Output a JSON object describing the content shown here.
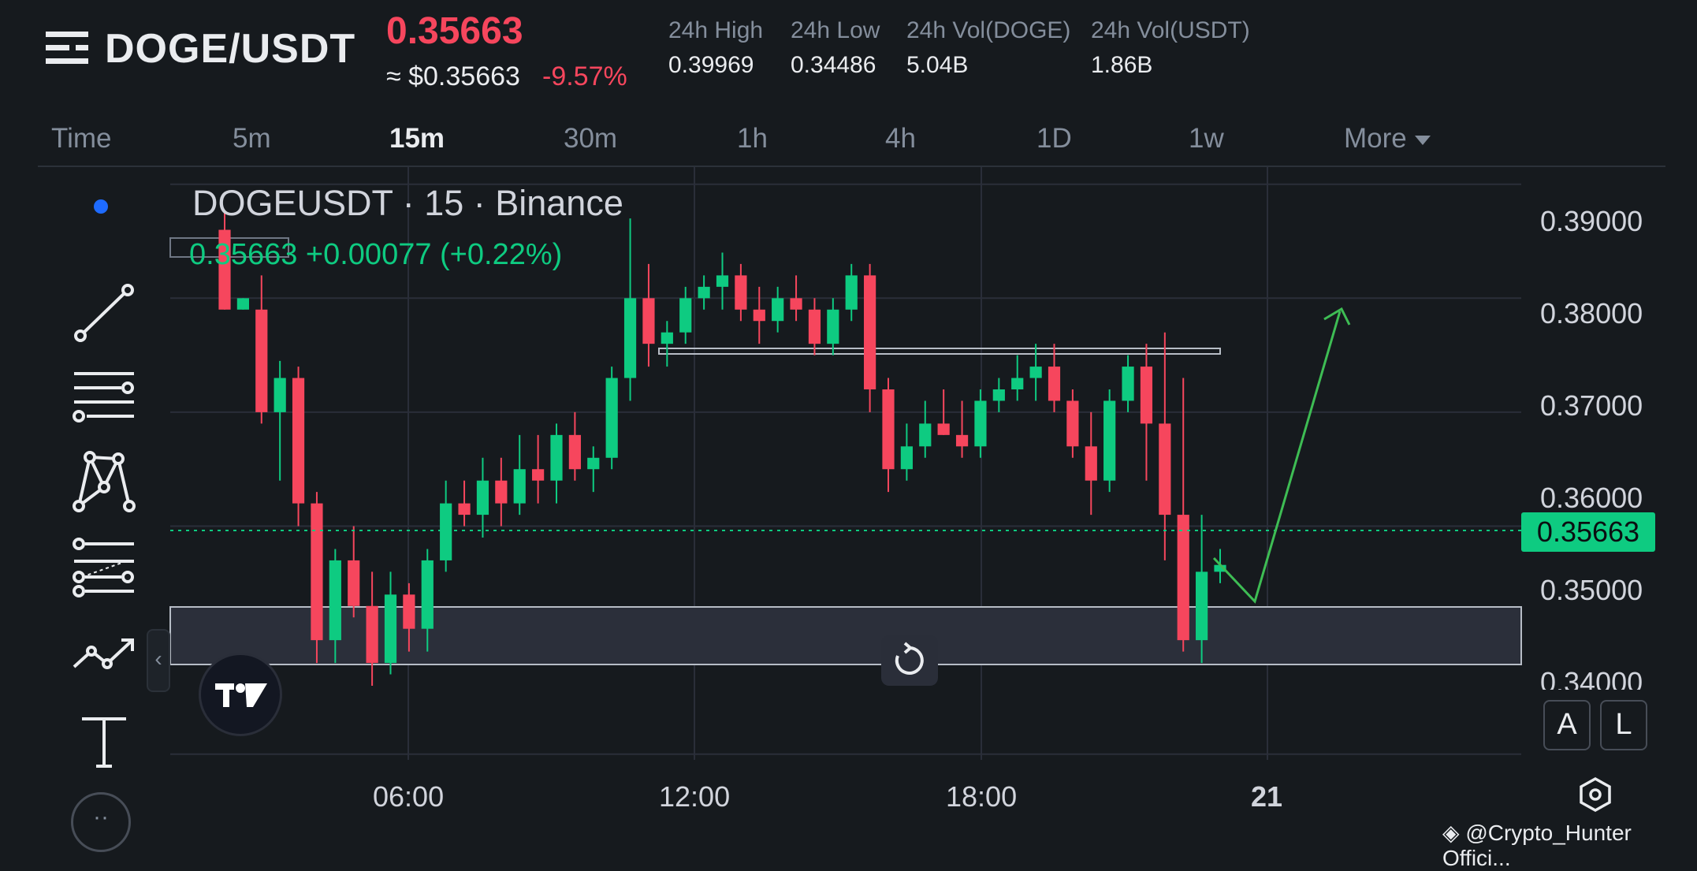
{
  "header": {
    "pair": "DOGE/USDT",
    "last_price": "0.35663",
    "approx_usd": "≈ $0.35663",
    "change_pct": "-9.57%",
    "stats": [
      {
        "label": "24h High",
        "value": "0.39969"
      },
      {
        "label": "24h Low",
        "value": "0.34486"
      },
      {
        "label": "24h Vol(DOGE)",
        "value": "5.04B"
      },
      {
        "label": "24h Vol(USDT)",
        "value": "1.86B"
      }
    ]
  },
  "timeframes": [
    "Time",
    "5m",
    "15m",
    "30m",
    "1h",
    "4h",
    "1D",
    "1w"
  ],
  "active_timeframe": "15m",
  "more_label": "More",
  "chart": {
    "symbol_line": "DOGEUSDT · 15 · Binance",
    "ohlc_line": "0.35663  +0.00077 (+0.22%)",
    "current_price_tag": "0.35663",
    "y_labels": [
      "0.39000",
      "0.38000",
      "0.37000",
      "0.36000",
      "0.35000",
      "0.34000"
    ],
    "x_labels": [
      "06:00",
      "12:00",
      "18:00",
      "21"
    ],
    "scale_buttons": [
      "A",
      "L"
    ]
  },
  "chart_data": {
    "type": "candlestick",
    "title": "DOGEUSDT · 15 · Binance",
    "ylim": [
      0.3395,
      0.3915
    ],
    "x_ticks": [
      "06:00",
      "12:00",
      "18:00",
      "21"
    ],
    "current_price": 0.35663,
    "candles": [
      {
        "o": 0.386,
        "h": 0.3875,
        "l": 0.379,
        "c": 0.379
      },
      {
        "o": 0.379,
        "h": 0.38,
        "l": 0.379,
        "c": 0.38
      },
      {
        "o": 0.379,
        "h": 0.382,
        "l": 0.369,
        "c": 0.37
      },
      {
        "o": 0.37,
        "h": 0.3745,
        "l": 0.364,
        "c": 0.373
      },
      {
        "o": 0.373,
        "h": 0.374,
        "l": 0.36,
        "c": 0.362
      },
      {
        "o": 0.362,
        "h": 0.363,
        "l": 0.348,
        "c": 0.35
      },
      {
        "o": 0.35,
        "h": 0.358,
        "l": 0.348,
        "c": 0.357
      },
      {
        "o": 0.357,
        "h": 0.36,
        "l": 0.352,
        "c": 0.353
      },
      {
        "o": 0.353,
        "h": 0.356,
        "l": 0.346,
        "c": 0.348
      },
      {
        "o": 0.348,
        "h": 0.356,
        "l": 0.347,
        "c": 0.354
      },
      {
        "o": 0.354,
        "h": 0.355,
        "l": 0.349,
        "c": 0.351
      },
      {
        "o": 0.351,
        "h": 0.358,
        "l": 0.349,
        "c": 0.357
      },
      {
        "o": 0.357,
        "h": 0.364,
        "l": 0.356,
        "c": 0.362
      },
      {
        "o": 0.362,
        "h": 0.364,
        "l": 0.36,
        "c": 0.361
      },
      {
        "o": 0.361,
        "h": 0.366,
        "l": 0.359,
        "c": 0.364
      },
      {
        "o": 0.364,
        "h": 0.366,
        "l": 0.36,
        "c": 0.362
      },
      {
        "o": 0.362,
        "h": 0.368,
        "l": 0.361,
        "c": 0.365
      },
      {
        "o": 0.365,
        "h": 0.368,
        "l": 0.362,
        "c": 0.364
      },
      {
        "o": 0.364,
        "h": 0.369,
        "l": 0.362,
        "c": 0.368
      },
      {
        "o": 0.368,
        "h": 0.37,
        "l": 0.364,
        "c": 0.365
      },
      {
        "o": 0.365,
        "h": 0.367,
        "l": 0.363,
        "c": 0.366
      },
      {
        "o": 0.366,
        "h": 0.374,
        "l": 0.365,
        "c": 0.373
      },
      {
        "o": 0.373,
        "h": 0.387,
        "l": 0.371,
        "c": 0.38
      },
      {
        "o": 0.38,
        "h": 0.383,
        "l": 0.374,
        "c": 0.376
      },
      {
        "o": 0.376,
        "h": 0.378,
        "l": 0.374,
        "c": 0.377
      },
      {
        "o": 0.377,
        "h": 0.381,
        "l": 0.376,
        "c": 0.38
      },
      {
        "o": 0.38,
        "h": 0.382,
        "l": 0.379,
        "c": 0.381
      },
      {
        "o": 0.381,
        "h": 0.384,
        "l": 0.379,
        "c": 0.382
      },
      {
        "o": 0.382,
        "h": 0.383,
        "l": 0.378,
        "c": 0.379
      },
      {
        "o": 0.379,
        "h": 0.381,
        "l": 0.376,
        "c": 0.378
      },
      {
        "o": 0.378,
        "h": 0.381,
        "l": 0.377,
        "c": 0.38
      },
      {
        "o": 0.38,
        "h": 0.382,
        "l": 0.378,
        "c": 0.379
      },
      {
        "o": 0.379,
        "h": 0.38,
        "l": 0.375,
        "c": 0.376
      },
      {
        "o": 0.376,
        "h": 0.38,
        "l": 0.375,
        "c": 0.379
      },
      {
        "o": 0.379,
        "h": 0.383,
        "l": 0.378,
        "c": 0.382
      },
      {
        "o": 0.382,
        "h": 0.383,
        "l": 0.37,
        "c": 0.372
      },
      {
        "o": 0.372,
        "h": 0.373,
        "l": 0.363,
        "c": 0.365
      },
      {
        "o": 0.365,
        "h": 0.369,
        "l": 0.364,
        "c": 0.367
      },
      {
        "o": 0.367,
        "h": 0.371,
        "l": 0.366,
        "c": 0.369
      },
      {
        "o": 0.369,
        "h": 0.372,
        "l": 0.368,
        "c": 0.368
      },
      {
        "o": 0.368,
        "h": 0.371,
        "l": 0.366,
        "c": 0.367
      },
      {
        "o": 0.367,
        "h": 0.372,
        "l": 0.366,
        "c": 0.371
      },
      {
        "o": 0.371,
        "h": 0.373,
        "l": 0.37,
        "c": 0.372
      },
      {
        "o": 0.372,
        "h": 0.375,
        "l": 0.371,
        "c": 0.373
      },
      {
        "o": 0.373,
        "h": 0.376,
        "l": 0.371,
        "c": 0.374
      },
      {
        "o": 0.374,
        "h": 0.376,
        "l": 0.37,
        "c": 0.371
      },
      {
        "o": 0.371,
        "h": 0.372,
        "l": 0.366,
        "c": 0.367
      },
      {
        "o": 0.367,
        "h": 0.37,
        "l": 0.361,
        "c": 0.364
      },
      {
        "o": 0.364,
        "h": 0.372,
        "l": 0.363,
        "c": 0.371
      },
      {
        "o": 0.371,
        "h": 0.375,
        "l": 0.37,
        "c": 0.374
      },
      {
        "o": 0.374,
        "h": 0.376,
        "l": 0.364,
        "c": 0.369
      },
      {
        "o": 0.369,
        "h": 0.377,
        "l": 0.357,
        "c": 0.361
      },
      {
        "o": 0.361,
        "h": 0.373,
        "l": 0.349,
        "c": 0.35
      },
      {
        "o": 0.35,
        "h": 0.361,
        "l": 0.348,
        "c": 0.356
      },
      {
        "o": 0.356,
        "h": 0.358,
        "l": 0.355,
        "c": 0.3566
      }
    ]
  },
  "watermark": "@Crypto_Hunter Offici..."
}
